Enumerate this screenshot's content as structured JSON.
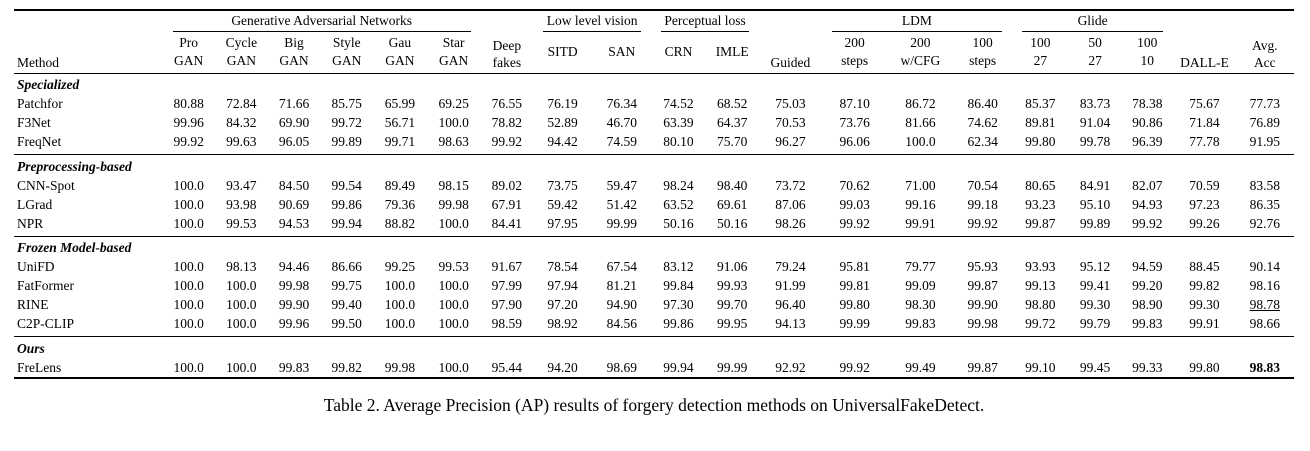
{
  "caption": "Table 2. Average Precision (AP) results of forgery detection methods on UniversalFakeDetect.",
  "header": {
    "method_label": "Method",
    "groups": [
      {
        "label": "Generative Adversarial Networks",
        "children": [
          [
            "Pro",
            "GAN"
          ],
          [
            "Cycle",
            "GAN"
          ],
          [
            "Big",
            "GAN"
          ],
          [
            "Style",
            "GAN"
          ],
          [
            "Gau",
            "GAN"
          ],
          [
            "Star",
            "GAN"
          ]
        ]
      },
      {
        "label": "Deep fakes",
        "lines": [
          "Deep",
          "fakes"
        ],
        "children": null
      },
      {
        "label": "Low level vision",
        "children": [
          [
            "SITD"
          ],
          [
            "SAN"
          ]
        ]
      },
      {
        "label": "Perceptual loss",
        "children": [
          [
            "CRN"
          ],
          [
            "IMLE"
          ]
        ]
      },
      {
        "label": "Guided",
        "lines": [
          "Guided"
        ],
        "children": null
      },
      {
        "label": "LDM",
        "children": [
          [
            "200",
            "steps"
          ],
          [
            "200",
            "w/CFG"
          ],
          [
            "100",
            "steps"
          ]
        ]
      },
      {
        "label": "Glide",
        "children": [
          [
            "100",
            "27"
          ],
          [
            "50",
            "27"
          ],
          [
            "100",
            "10"
          ]
        ]
      },
      {
        "label": "DALL-E",
        "lines": [
          "DALL-E"
        ],
        "children": null
      },
      {
        "label": "Avg. Acc",
        "lines": [
          "Avg.",
          "Acc"
        ],
        "children": null
      }
    ]
  },
  "sections": [
    {
      "title": "Specialized",
      "rows": [
        {
          "method": "Patchfor",
          "values": [
            "80.88",
            "72.84",
            "71.66",
            "85.75",
            "65.99",
            "69.25",
            "76.55",
            "76.19",
            "76.34",
            "74.52",
            "68.52",
            "75.03",
            "87.10",
            "86.72",
            "86.40",
            "85.37",
            "83.73",
            "78.38",
            "75.67",
            "77.73"
          ]
        },
        {
          "method": "F3Net",
          "values": [
            "99.96",
            "84.32",
            "69.90",
            "99.72",
            "56.71",
            "100.0",
            "78.82",
            "52.89",
            "46.70",
            "63.39",
            "64.37",
            "70.53",
            "73.76",
            "81.66",
            "74.62",
            "89.81",
            "91.04",
            "90.86",
            "71.84",
            "76.89"
          ]
        },
        {
          "method": "FreqNet",
          "values": [
            "99.92",
            "99.63",
            "96.05",
            "99.89",
            "99.71",
            "98.63",
            "99.92",
            "94.42",
            "74.59",
            "80.10",
            "75.70",
            "96.27",
            "96.06",
            "100.0",
            "62.34",
            "99.80",
            "99.78",
            "96.39",
            "77.78",
            "91.95"
          ]
        }
      ]
    },
    {
      "title": "Preprocessing-based",
      "rows": [
        {
          "method": "CNN-Spot",
          "values": [
            "100.0",
            "93.47",
            "84.50",
            "99.54",
            "89.49",
            "98.15",
            "89.02",
            "73.75",
            "59.47",
            "98.24",
            "98.40",
            "73.72",
            "70.62",
            "71.00",
            "70.54",
            "80.65",
            "84.91",
            "82.07",
            "70.59",
            "83.58"
          ]
        },
        {
          "method": "LGrad",
          "values": [
            "100.0",
            "93.98",
            "90.69",
            "99.86",
            "79.36",
            "99.98",
            "67.91",
            "59.42",
            "51.42",
            "63.52",
            "69.61",
            "87.06",
            "99.03",
            "99.16",
            "99.18",
            "93.23",
            "95.10",
            "94.93",
            "97.23",
            "86.35"
          ]
        },
        {
          "method": "NPR",
          "values": [
            "100.0",
            "99.53",
            "94.53",
            "99.94",
            "88.82",
            "100.0",
            "84.41",
            "97.95",
            "99.99",
            "50.16",
            "50.16",
            "98.26",
            "99.92",
            "99.91",
            "99.92",
            "99.87",
            "99.89",
            "99.92",
            "99.26",
            "92.76"
          ]
        }
      ]
    },
    {
      "title": "Frozen Model-based",
      "rows": [
        {
          "method": "UniFD",
          "values": [
            "100.0",
            "98.13",
            "94.46",
            "86.66",
            "99.25",
            "99.53",
            "91.67",
            "78.54",
            "67.54",
            "83.12",
            "91.06",
            "79.24",
            "95.81",
            "79.77",
            "95.93",
            "93.93",
            "95.12",
            "94.59",
            "88.45",
            "90.14"
          ]
        },
        {
          "method": "FatFormer",
          "values": [
            "100.0",
            "100.0",
            "99.98",
            "99.75",
            "100.0",
            "100.0",
            "97.99",
            "97.94",
            "81.21",
            "99.84",
            "99.93",
            "91.99",
            "99.81",
            "99.09",
            "99.87",
            "99.13",
            "99.41",
            "99.20",
            "99.82",
            "98.16"
          ]
        },
        {
          "method": "RINE",
          "values": [
            "100.0",
            "100.0",
            "99.90",
            "99.40",
            "100.0",
            "100.0",
            "97.90",
            "97.20",
            "94.90",
            "97.30",
            "99.70",
            "96.40",
            "99.80",
            "98.30",
            "99.90",
            "98.80",
            "99.30",
            "98.90",
            "99.30",
            "98.78"
          ],
          "underline_idx": [
            19
          ]
        },
        {
          "method": "C2P-CLIP",
          "values": [
            "100.0",
            "100.0",
            "99.96",
            "99.50",
            "100.0",
            "100.0",
            "98.59",
            "98.92",
            "84.56",
            "99.86",
            "99.95",
            "94.13",
            "99.99",
            "99.83",
            "99.98",
            "99.72",
            "99.79",
            "99.83",
            "99.91",
            "98.66"
          ]
        }
      ]
    },
    {
      "title": "Ours",
      "rows": [
        {
          "method": "FreLens",
          "values": [
            "100.0",
            "100.0",
            "99.83",
            "99.82",
            "99.98",
            "100.0",
            "95.44",
            "94.20",
            "98.69",
            "99.94",
            "99.99",
            "92.92",
            "99.92",
            "99.49",
            "99.87",
            "99.10",
            "99.45",
            "99.33",
            "99.80",
            "98.83"
          ],
          "bold_idx": [
            19
          ]
        }
      ]
    }
  ]
}
